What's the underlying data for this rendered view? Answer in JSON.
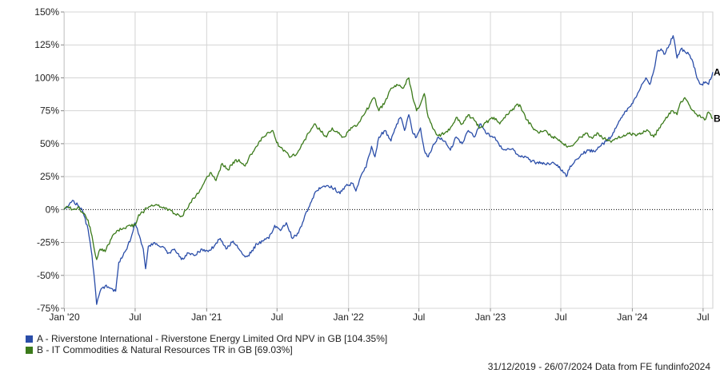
{
  "chart_data": {
    "type": "line",
    "ylim": [
      -75,
      150
    ],
    "y_ticks": [
      "150%",
      "125%",
      "100%",
      "75%",
      "50%",
      "25%",
      "0%",
      "-25%",
      "-50%",
      "-75%"
    ],
    "y_tick_values": [
      150,
      125,
      100,
      75,
      50,
      25,
      0,
      -25,
      -50,
      -75
    ],
    "x_ticks": [
      "Jan '20",
      "Jul",
      "Jan '21",
      "Jul",
      "Jan '22",
      "Jul",
      "Jan '23",
      "Jul",
      "Jan '24",
      "Jul"
    ],
    "x_tick_values": [
      "2020-01-01",
      "2020-07-01",
      "2021-01-01",
      "2021-07-01",
      "2022-01-01",
      "2022-07-01",
      "2023-01-01",
      "2023-07-01",
      "2024-01-01",
      "2024-07-01"
    ],
    "x_range": [
      "2019-12-31",
      "2024-07-26"
    ],
    "grid": true,
    "zero_line": "dotted",
    "series": [
      {
        "name": "A - Riverstone International - Riverstone Energy Limited Ord NPV in GB [104.35%]",
        "end_label": "A",
        "color": "#2a4da8",
        "points": [
          [
            "2019-12-31",
            0
          ],
          [
            "2020-01-10",
            2
          ],
          [
            "2020-01-22",
            7
          ],
          [
            "2020-02-05",
            3
          ],
          [
            "2020-02-18",
            -2
          ],
          [
            "2020-03-02",
            -15
          ],
          [
            "2020-03-12",
            -35
          ],
          [
            "2020-03-19",
            -55
          ],
          [
            "2020-03-24",
            -72
          ],
          [
            "2020-04-02",
            -62
          ],
          [
            "2020-04-15",
            -58
          ],
          [
            "2020-05-01",
            -60
          ],
          [
            "2020-05-12",
            -62
          ],
          [
            "2020-05-20",
            -40
          ],
          [
            "2020-06-05",
            -32
          ],
          [
            "2020-06-20",
            -22
          ],
          [
            "2020-07-01",
            -10
          ],
          [
            "2020-07-12",
            -20
          ],
          [
            "2020-07-22",
            -30
          ],
          [
            "2020-07-28",
            -45
          ],
          [
            "2020-08-04",
            -28
          ],
          [
            "2020-08-20",
            -25
          ],
          [
            "2020-09-10",
            -28
          ],
          [
            "2020-09-25",
            -33
          ],
          [
            "2020-10-10",
            -30
          ],
          [
            "2020-10-28",
            -38
          ],
          [
            "2020-11-15",
            -33
          ],
          [
            "2020-12-01",
            -35
          ],
          [
            "2020-12-20",
            -30
          ],
          [
            "2021-01-05",
            -32
          ],
          [
            "2021-01-20",
            -28
          ],
          [
            "2021-02-05",
            -22
          ],
          [
            "2021-02-20",
            -30
          ],
          [
            "2021-03-10",
            -24
          ],
          [
            "2021-03-25",
            -30
          ],
          [
            "2021-04-10",
            -36
          ],
          [
            "2021-04-25",
            -33
          ],
          [
            "2021-05-10",
            -26
          ],
          [
            "2021-05-25",
            -24
          ],
          [
            "2021-06-10",
            -22
          ],
          [
            "2021-06-25",
            -12
          ],
          [
            "2021-07-10",
            -16
          ],
          [
            "2021-07-25",
            -10
          ],
          [
            "2021-08-10",
            -22
          ],
          [
            "2021-08-25",
            -18
          ],
          [
            "2021-09-10",
            -5
          ],
          [
            "2021-09-25",
            5
          ],
          [
            "2021-10-10",
            14
          ],
          [
            "2021-10-25",
            17
          ],
          [
            "2021-11-10",
            18
          ],
          [
            "2021-11-25",
            16
          ],
          [
            "2021-12-10",
            12
          ],
          [
            "2021-12-25",
            18
          ],
          [
            "2022-01-10",
            20
          ],
          [
            "2022-01-20",
            14
          ],
          [
            "2022-02-01",
            25
          ],
          [
            "2022-02-15",
            32
          ],
          [
            "2022-03-01",
            48
          ],
          [
            "2022-03-10",
            40
          ],
          [
            "2022-03-20",
            55
          ],
          [
            "2022-04-05",
            60
          ],
          [
            "2022-04-20",
            52
          ],
          [
            "2022-05-05",
            65
          ],
          [
            "2022-05-15",
            70
          ],
          [
            "2022-05-25",
            60
          ],
          [
            "2022-06-05",
            72
          ],
          [
            "2022-06-15",
            58
          ],
          [
            "2022-06-25",
            55
          ],
          [
            "2022-07-05",
            62
          ],
          [
            "2022-07-15",
            45
          ],
          [
            "2022-07-25",
            40
          ],
          [
            "2022-08-05",
            48
          ],
          [
            "2022-08-20",
            55
          ],
          [
            "2022-09-05",
            52
          ],
          [
            "2022-09-20",
            45
          ],
          [
            "2022-10-05",
            55
          ],
          [
            "2022-10-20",
            50
          ],
          [
            "2022-11-05",
            60
          ],
          [
            "2022-11-20",
            55
          ],
          [
            "2022-12-05",
            65
          ],
          [
            "2022-12-20",
            58
          ],
          [
            "2023-01-10",
            55
          ],
          [
            "2023-01-25",
            48
          ],
          [
            "2023-02-10",
            45
          ],
          [
            "2023-02-25",
            46
          ],
          [
            "2023-03-10",
            42
          ],
          [
            "2023-03-25",
            40
          ],
          [
            "2023-04-10",
            38
          ],
          [
            "2023-04-25",
            36
          ],
          [
            "2023-05-10",
            35
          ],
          [
            "2023-05-25",
            34
          ],
          [
            "2023-06-10",
            36
          ],
          [
            "2023-06-25",
            32
          ],
          [
            "2023-07-05",
            30
          ],
          [
            "2023-07-15",
            25
          ],
          [
            "2023-07-25",
            33
          ],
          [
            "2023-08-10",
            38
          ],
          [
            "2023-08-25",
            42
          ],
          [
            "2023-09-10",
            45
          ],
          [
            "2023-09-25",
            44
          ],
          [
            "2023-10-10",
            48
          ],
          [
            "2023-10-25",
            52
          ],
          [
            "2023-11-10",
            56
          ],
          [
            "2023-11-25",
            65
          ],
          [
            "2023-12-10",
            72
          ],
          [
            "2023-12-25",
            78
          ],
          [
            "2024-01-10",
            85
          ],
          [
            "2024-01-25",
            95
          ],
          [
            "2024-02-05",
            100
          ],
          [
            "2024-02-15",
            95
          ],
          [
            "2024-02-25",
            105
          ],
          [
            "2024-03-05",
            120
          ],
          [
            "2024-03-15",
            122
          ],
          [
            "2024-03-25",
            118
          ],
          [
            "2024-04-05",
            125
          ],
          [
            "2024-04-15",
            132
          ],
          [
            "2024-04-25",
            115
          ],
          [
            "2024-05-05",
            122
          ],
          [
            "2024-05-15",
            120
          ],
          [
            "2024-05-25",
            118
          ],
          [
            "2024-06-05",
            112
          ],
          [
            "2024-06-15",
            100
          ],
          [
            "2024-06-25",
            95
          ],
          [
            "2024-07-05",
            96
          ],
          [
            "2024-07-15",
            95
          ],
          [
            "2024-07-26",
            104.35
          ]
        ]
      },
      {
        "name": "B - IT Commodities & Natural Resources TR in GB [69.03%]",
        "end_label": "B",
        "color": "#3b7a1a",
        "points": [
          [
            "2019-12-31",
            0
          ],
          [
            "2020-01-10",
            2
          ],
          [
            "2020-01-22",
            0
          ],
          [
            "2020-02-05",
            2
          ],
          [
            "2020-02-18",
            -3
          ],
          [
            "2020-03-02",
            -8
          ],
          [
            "2020-03-12",
            -20
          ],
          [
            "2020-03-19",
            -32
          ],
          [
            "2020-03-24",
            -38
          ],
          [
            "2020-04-02",
            -30
          ],
          [
            "2020-04-15",
            -32
          ],
          [
            "2020-05-01",
            -22
          ],
          [
            "2020-05-15",
            -16
          ],
          [
            "2020-06-01",
            -14
          ],
          [
            "2020-06-15",
            -12
          ],
          [
            "2020-07-01",
            -12
          ],
          [
            "2020-07-10",
            -4
          ],
          [
            "2020-07-20",
            -2
          ],
          [
            "2020-08-05",
            2
          ],
          [
            "2020-08-20",
            3
          ],
          [
            "2020-09-05",
            2
          ],
          [
            "2020-09-20",
            1
          ],
          [
            "2020-10-10",
            -3
          ],
          [
            "2020-10-28",
            -5
          ],
          [
            "2020-11-10",
            0
          ],
          [
            "2020-11-25",
            8
          ],
          [
            "2020-12-10",
            12
          ],
          [
            "2020-12-25",
            20
          ],
          [
            "2021-01-10",
            28
          ],
          [
            "2021-01-25",
            22
          ],
          [
            "2021-02-10",
            35
          ],
          [
            "2021-02-25",
            30
          ],
          [
            "2021-03-10",
            36
          ],
          [
            "2021-03-25",
            38
          ],
          [
            "2021-04-10",
            33
          ],
          [
            "2021-04-25",
            42
          ],
          [
            "2021-05-10",
            48
          ],
          [
            "2021-05-25",
            55
          ],
          [
            "2021-06-05",
            58
          ],
          [
            "2021-06-20",
            60
          ],
          [
            "2021-07-05",
            48
          ],
          [
            "2021-07-20",
            45
          ],
          [
            "2021-08-05",
            40
          ],
          [
            "2021-08-20",
            42
          ],
          [
            "2021-09-05",
            50
          ],
          [
            "2021-09-20",
            58
          ],
          [
            "2021-10-05",
            65
          ],
          [
            "2021-10-20",
            60
          ],
          [
            "2021-11-05",
            55
          ],
          [
            "2021-11-20",
            62
          ],
          [
            "2021-12-05",
            58
          ],
          [
            "2021-12-20",
            55
          ],
          [
            "2022-01-10",
            62
          ],
          [
            "2022-01-25",
            65
          ],
          [
            "2022-02-10",
            72
          ],
          [
            "2022-02-25",
            80
          ],
          [
            "2022-03-08",
            85
          ],
          [
            "2022-03-20",
            75
          ],
          [
            "2022-04-05",
            82
          ],
          [
            "2022-04-20",
            92
          ],
          [
            "2022-05-05",
            95
          ],
          [
            "2022-05-20",
            92
          ],
          [
            "2022-06-05",
            100
          ],
          [
            "2022-06-15",
            85
          ],
          [
            "2022-06-25",
            75
          ],
          [
            "2022-07-05",
            80
          ],
          [
            "2022-07-15",
            88
          ],
          [
            "2022-07-25",
            70
          ],
          [
            "2022-08-05",
            62
          ],
          [
            "2022-08-20",
            56
          ],
          [
            "2022-09-05",
            58
          ],
          [
            "2022-09-20",
            62
          ],
          [
            "2022-10-05",
            70
          ],
          [
            "2022-10-20",
            65
          ],
          [
            "2022-11-05",
            72
          ],
          [
            "2022-11-20",
            68
          ],
          [
            "2022-12-05",
            62
          ],
          [
            "2022-12-20",
            66
          ],
          [
            "2023-01-10",
            70
          ],
          [
            "2023-01-25",
            65
          ],
          [
            "2023-02-10",
            72
          ],
          [
            "2023-02-25",
            75
          ],
          [
            "2023-03-10",
            80
          ],
          [
            "2023-03-20",
            78
          ],
          [
            "2023-04-05",
            68
          ],
          [
            "2023-04-20",
            62
          ],
          [
            "2023-05-05",
            58
          ],
          [
            "2023-05-20",
            60
          ],
          [
            "2023-06-05",
            56
          ],
          [
            "2023-06-20",
            54
          ],
          [
            "2023-07-05",
            50
          ],
          [
            "2023-07-20",
            48
          ],
          [
            "2023-08-05",
            50
          ],
          [
            "2023-08-20",
            55
          ],
          [
            "2023-09-05",
            58
          ],
          [
            "2023-09-20",
            54
          ],
          [
            "2023-10-05",
            58
          ],
          [
            "2023-10-20",
            54
          ],
          [
            "2023-11-05",
            52
          ],
          [
            "2023-11-20",
            54
          ],
          [
            "2023-12-05",
            55
          ],
          [
            "2023-12-20",
            58
          ],
          [
            "2024-01-10",
            56
          ],
          [
            "2024-01-25",
            58
          ],
          [
            "2024-02-10",
            60
          ],
          [
            "2024-02-25",
            55
          ],
          [
            "2024-03-10",
            62
          ],
          [
            "2024-03-25",
            68
          ],
          [
            "2024-04-10",
            75
          ],
          [
            "2024-04-25",
            72
          ],
          [
            "2024-05-05",
            82
          ],
          [
            "2024-05-15",
            85
          ],
          [
            "2024-05-25",
            80
          ],
          [
            "2024-06-05",
            75
          ],
          [
            "2024-06-15",
            72
          ],
          [
            "2024-06-25",
            70
          ],
          [
            "2024-07-05",
            68
          ],
          [
            "2024-07-15",
            74
          ],
          [
            "2024-07-26",
            69.03
          ]
        ]
      }
    ]
  },
  "legend": {
    "a": {
      "label": "A - Riverstone International - Riverstone Energy Limited Ord NPV in GB [104.35%]",
      "color": "#2a4da8"
    },
    "b": {
      "label": "B - IT Commodities & Natural Resources TR in GB [69.03%]",
      "color": "#3b7a1a"
    }
  },
  "footer": "31/12/2019 - 26/07/2024 Data from FE fundinfo2024"
}
